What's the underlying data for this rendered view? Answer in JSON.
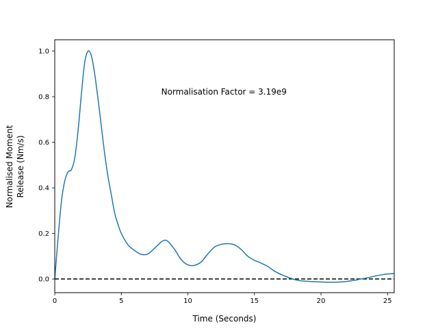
{
  "chart_data": {
    "type": "line",
    "title": "",
    "xlabel": "Time (Seconds)",
    "ylabel_lines": [
      "Normalised Moment",
      "Release (Nm/s)"
    ],
    "xlim": [
      0,
      25.5
    ],
    "ylim": [
      -0.06,
      1.05
    ],
    "xticks": [
      0,
      5,
      10,
      15,
      20,
      25
    ],
    "yticks": [
      0.0,
      0.2,
      0.4,
      0.6,
      0.8,
      1.0
    ],
    "xtick_labels": [
      "0",
      "5",
      "10",
      "15",
      "20",
      "25"
    ],
    "ytick_labels": [
      "0.0",
      "0.2",
      "0.4",
      "0.6",
      "0.8",
      "1.0"
    ],
    "grid": false,
    "annotation": "Normalisation Factor = 3.19e9",
    "annotation_at": [
      8.0,
      0.81
    ],
    "reference_line": {
      "y": 0.0,
      "style": "dashed",
      "color": "#000000"
    },
    "series": [
      {
        "color": "#1f77b4",
        "x": [
          0,
          0.25,
          0.5,
          0.75,
          1.0,
          1.25,
          1.5,
          1.75,
          2.0,
          2.25,
          2.5,
          2.75,
          3.0,
          3.25,
          3.5,
          3.75,
          4.0,
          4.25,
          4.5,
          4.75,
          5.0,
          5.5,
          6.0,
          6.5,
          7.0,
          7.5,
          8.0,
          8.25,
          8.5,
          9.0,
          9.5,
          10.0,
          10.5,
          11.0,
          11.5,
          12.0,
          12.5,
          13.0,
          13.5,
          14.0,
          14.5,
          15.0,
          15.5,
          16.0,
          16.5,
          17.0,
          17.5,
          18.0,
          18.5,
          19.0,
          19.5,
          20.0,
          20.5,
          21.0,
          21.5,
          22.0,
          22.5,
          23.0,
          23.5,
          24.0,
          24.5,
          25.0,
          25.5
        ],
        "y": [
          0.0,
          0.18,
          0.34,
          0.43,
          0.47,
          0.48,
          0.53,
          0.65,
          0.81,
          0.95,
          1.0,
          0.98,
          0.9,
          0.79,
          0.67,
          0.55,
          0.45,
          0.37,
          0.29,
          0.24,
          0.2,
          0.15,
          0.125,
          0.108,
          0.11,
          0.135,
          0.163,
          0.17,
          0.165,
          0.13,
          0.085,
          0.062,
          0.06,
          0.075,
          0.11,
          0.14,
          0.152,
          0.155,
          0.15,
          0.13,
          0.1,
          0.082,
          0.07,
          0.055,
          0.035,
          0.02,
          0.008,
          -0.002,
          -0.008,
          -0.01,
          -0.012,
          -0.013,
          -0.014,
          -0.014,
          -0.013,
          -0.01,
          -0.006,
          0.0,
          0.005,
          0.012,
          0.018,
          0.022,
          0.024
        ]
      }
    ]
  }
}
